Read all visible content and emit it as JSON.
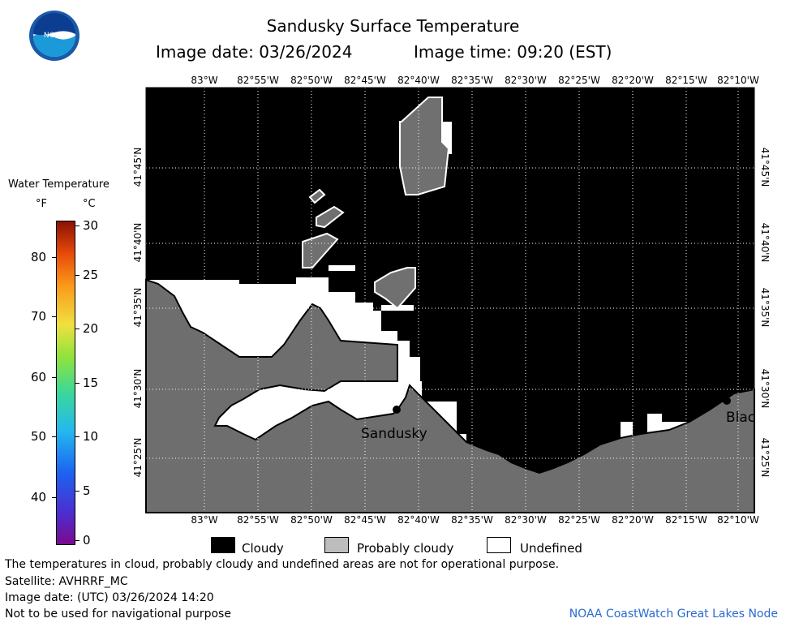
{
  "header": {
    "title": "Sandusky Surface Temperature",
    "date_label": "Image date:",
    "date_value": "03/26/2024",
    "time_label": "Image time:",
    "time_value": "09:20 (EST)"
  },
  "logo": {
    "text": "NOAA"
  },
  "scale": {
    "title": "Water Temperature",
    "f_unit": "°F",
    "c_unit": "°C",
    "f_ticks": [
      "80",
      "70",
      "60",
      "50",
      "40"
    ],
    "c_ticks": [
      "30",
      "25",
      "20",
      "15",
      "10",
      "5",
      "0"
    ]
  },
  "map": {
    "lon_labels": [
      "83°W",
      "82°55'W",
      "82°50'W",
      "82°45'W",
      "82°40'W",
      "82°35'W",
      "82°30'W",
      "82°25'W",
      "82°20'W",
      "82°15'W",
      "82°10'W"
    ],
    "lat_labels": [
      "41°45'N",
      "41°40'N",
      "41°35'N",
      "41°30'N",
      "41°25'N"
    ],
    "places": {
      "sandusky": "Sandusky",
      "blac": "Blac"
    },
    "colors": {
      "cloudy": "#000000",
      "probably_cloudy": "#707070",
      "undefined": "#ffffff",
      "land": "#6e6e6e"
    }
  },
  "legend": {
    "cloudy": "Cloudy",
    "probably_cloudy": "Probably cloudy",
    "undefined": "Undefined"
  },
  "footer": {
    "note": "The temperatures in cloud, probably cloudy and undefined areas are not for operational purpose.",
    "satellite": "Satellite: AVHRRF_MC",
    "utc_date": "Image date: (UTC) 03/26/2024  14:20",
    "nav_warning": "Not to be used for navigational purpose",
    "credit": "NOAA CoastWatch Great Lakes Node"
  }
}
